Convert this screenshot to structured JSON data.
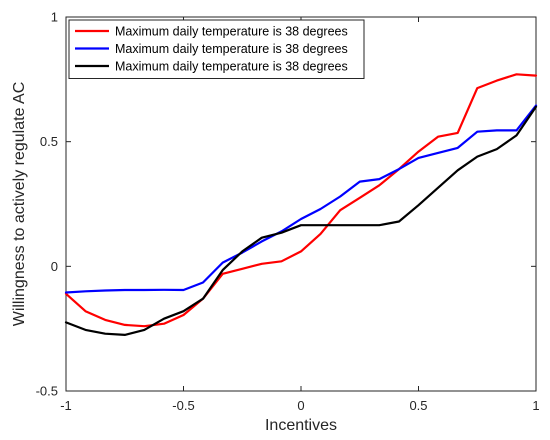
{
  "chart_data": {
    "type": "line",
    "title": "",
    "xlabel": "Incentives",
    "ylabel": "Willingness to actively regulate AC",
    "xlim": [
      -1,
      1
    ],
    "ylim": [
      -0.5,
      1
    ],
    "xticks": [
      -1,
      -0.5,
      0,
      0.5,
      1
    ],
    "xtick_labels": [
      "-1",
      "-0.5",
      "0",
      "0.5",
      "1"
    ],
    "yticks": [
      -0.5,
      0,
      0.5,
      1
    ],
    "ytick_labels": [
      "-0.5",
      "0",
      "0.5",
      "1"
    ],
    "grid": false,
    "legend_position": "top-left",
    "series": [
      {
        "name": "Maximum daily temperature is 38 degrees",
        "color": "#ff0000",
        "x": [
          -1,
          -0.917,
          -0.833,
          -0.75,
          -0.667,
          -0.583,
          -0.5,
          -0.417,
          -0.333,
          -0.25,
          -0.167,
          -0.083,
          0,
          0.083,
          0.167,
          0.25,
          0.333,
          0.417,
          0.5,
          0.583,
          0.667,
          0.75,
          0.833,
          0.917,
          1
        ],
        "y": [
          -0.11,
          -0.18,
          -0.215,
          -0.235,
          -0.24,
          -0.23,
          -0.195,
          -0.13,
          -0.03,
          -0.01,
          0.01,
          0.02,
          0.06,
          0.13,
          0.225,
          0.275,
          0.325,
          0.39,
          0.46,
          0.52,
          0.535,
          0.715,
          0.745,
          0.77,
          0.765
        ]
      },
      {
        "name": "Maximum daily temperature is 38 degrees",
        "color": "#0000ff",
        "x": [
          -1,
          -0.917,
          -0.833,
          -0.75,
          -0.667,
          -0.583,
          -0.5,
          -0.417,
          -0.333,
          -0.25,
          -0.167,
          -0.083,
          0,
          0.083,
          0.167,
          0.25,
          0.333,
          0.417,
          0.5,
          0.583,
          0.667,
          0.75,
          0.833,
          0.917,
          1
        ],
        "y": [
          -0.105,
          -0.1,
          -0.097,
          -0.095,
          -0.095,
          -0.094,
          -0.095,
          -0.065,
          0.015,
          0.055,
          0.1,
          0.14,
          0.19,
          0.23,
          0.28,
          0.34,
          0.35,
          0.39,
          0.435,
          0.455,
          0.475,
          0.54,
          0.545,
          0.545,
          0.645
        ]
      },
      {
        "name": "Maximum daily temperature is 38 degrees",
        "color": "#000000",
        "x": [
          -1,
          -0.917,
          -0.833,
          -0.75,
          -0.667,
          -0.583,
          -0.5,
          -0.417,
          -0.333,
          -0.25,
          -0.167,
          -0.083,
          0,
          0.083,
          0.167,
          0.25,
          0.333,
          0.417,
          0.5,
          0.583,
          0.667,
          0.75,
          0.833,
          0.917,
          1
        ],
        "y": [
          -0.225,
          -0.255,
          -0.27,
          -0.275,
          -0.255,
          -0.21,
          -0.18,
          -0.13,
          -0.015,
          0.06,
          0.115,
          0.135,
          0.165,
          0.165,
          0.165,
          0.165,
          0.165,
          0.18,
          0.245,
          0.315,
          0.385,
          0.44,
          0.47,
          0.525,
          0.64
        ]
      }
    ]
  }
}
